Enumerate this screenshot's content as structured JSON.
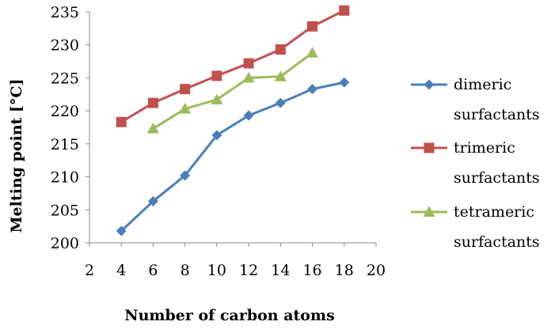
{
  "chart_data": {
    "type": "line",
    "xlabel": "Number of carbon atoms",
    "ylabel": "Melting point [°C]",
    "xlim": [
      2,
      20
    ],
    "ylim": [
      200,
      235
    ],
    "x_ticks": [
      2,
      4,
      6,
      8,
      10,
      12,
      14,
      16,
      18,
      20
    ],
    "y_ticks": [
      200,
      205,
      210,
      215,
      220,
      225,
      230,
      235
    ],
    "grid": false,
    "legend_position": "right",
    "series": [
      {
        "name_lines": [
          "dimeric",
          "surfactants"
        ],
        "color": "#4A7EBB",
        "marker": "diamond",
        "x": [
          4,
          6,
          8,
          10,
          12,
          14,
          16,
          18
        ],
        "y": [
          201.8,
          206.3,
          210.2,
          216.3,
          219.3,
          221.2,
          223.3,
          224.3
        ]
      },
      {
        "name_lines": [
          "trimeric",
          "surfactants"
        ],
        "color": "#C0504D",
        "marker": "square",
        "x": [
          4,
          6,
          8,
          10,
          12,
          14,
          16,
          18
        ],
        "y": [
          218.3,
          221.2,
          223.3,
          225.3,
          227.2,
          229.3,
          232.8,
          235.2
        ]
      },
      {
        "name_lines": [
          "tetrameric",
          "surfactants"
        ],
        "color": "#9BBB59",
        "marker": "triangle",
        "x": [
          6,
          8,
          10,
          12,
          14,
          16
        ],
        "y": [
          217.3,
          220.3,
          221.7,
          225.0,
          225.2,
          228.8
        ]
      }
    ]
  }
}
